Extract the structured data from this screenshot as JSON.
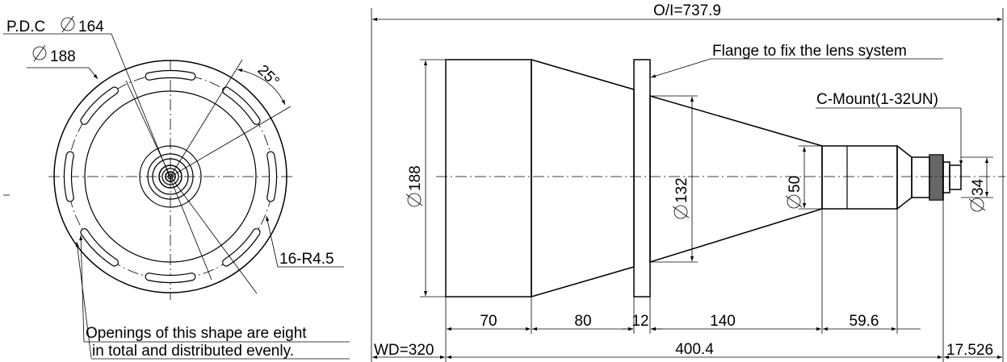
{
  "front_view": {
    "pdc_label": "P.D.C",
    "pdc_value": "164",
    "dia_outer_value": "188",
    "angle_label": "25°",
    "radius_label": "16-R4.5",
    "note_line1": "Openings of this shape are eight",
    "note_line2": "in total and distributed evenly."
  },
  "side_view": {
    "overall_length": "O/I=737.9",
    "flange_note": "Flange to fix the lens system",
    "cmount_label": "C-Mount(1-32UN)",
    "dia_188": "188",
    "dia_132": "132",
    "dia_50": "50",
    "dia_34": "34",
    "seg_70": "70",
    "seg_80": "80",
    "seg_12": "12",
    "seg_140": "140",
    "seg_59_6": "59.6",
    "wd": "WD=320",
    "total_400_4": "400.4",
    "back_17_526": "17.526"
  }
}
